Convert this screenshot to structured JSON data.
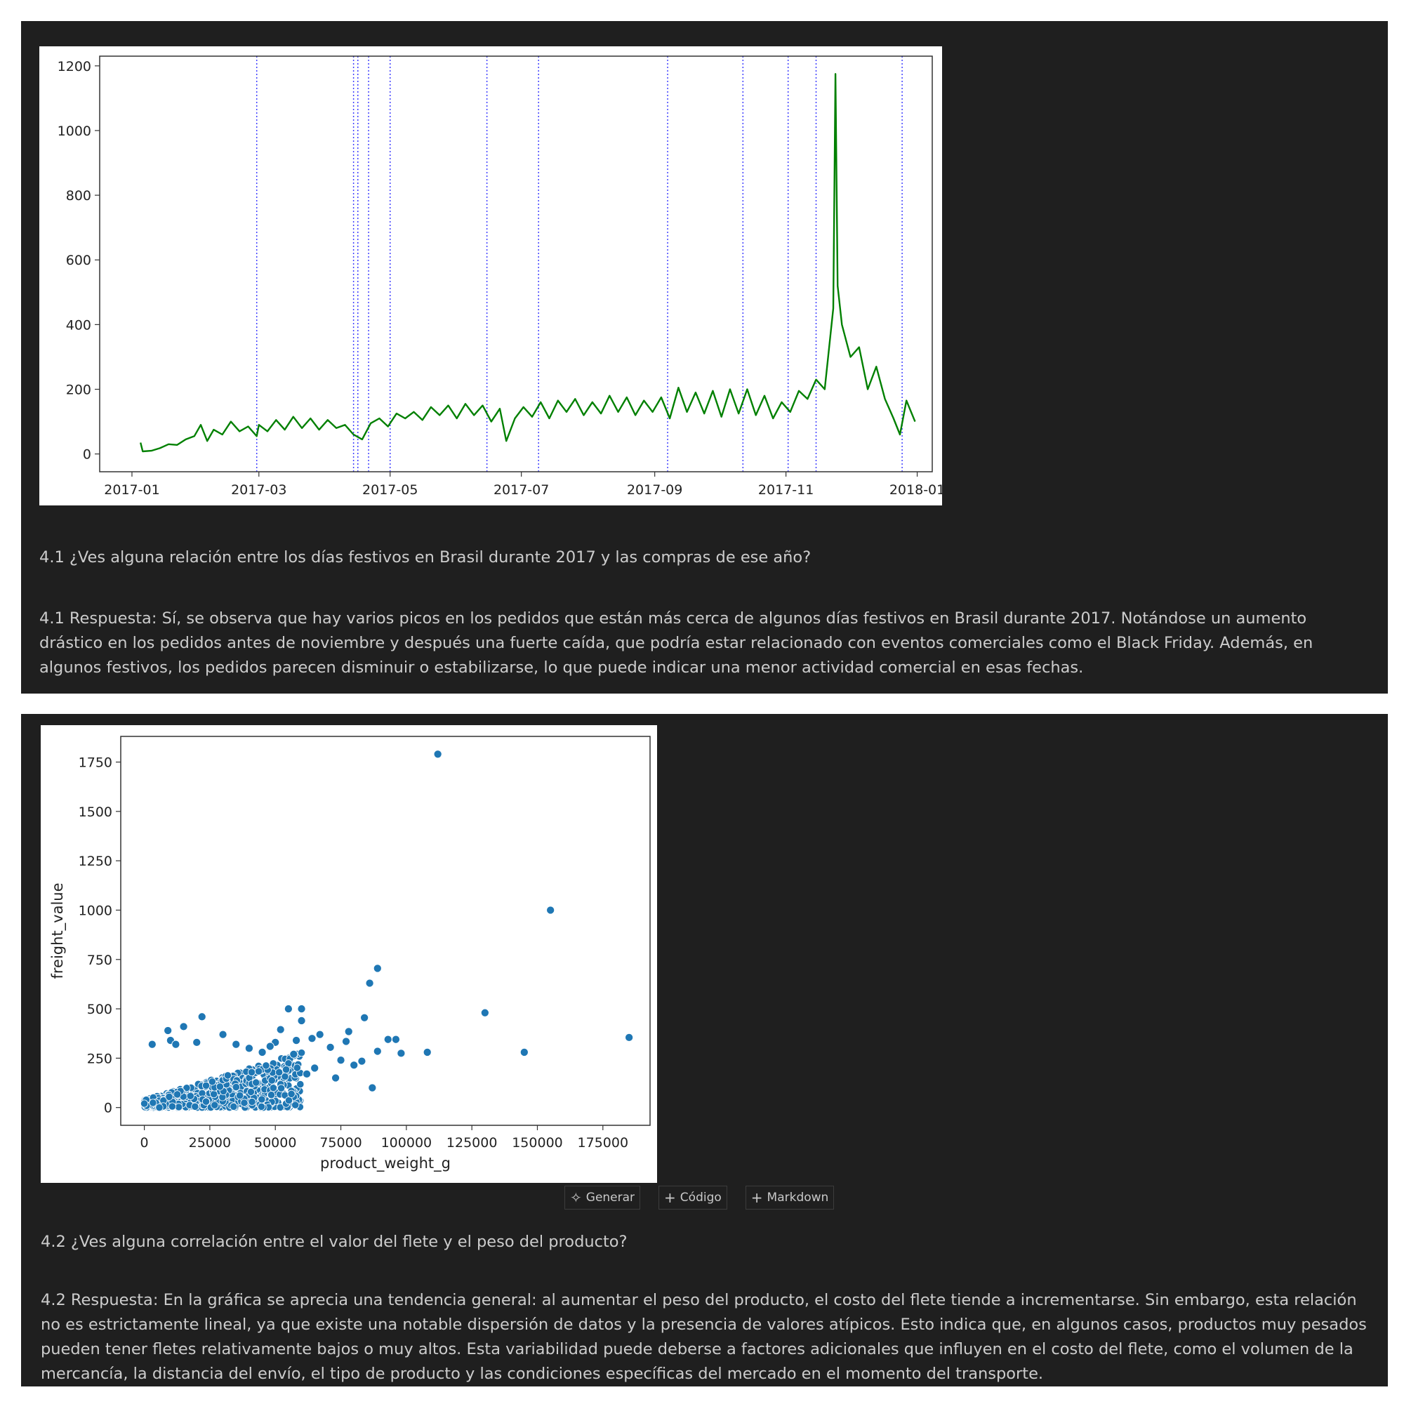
{
  "cells": {
    "first": {
      "question": "4.1 ¿Ves alguna relación entre los días festivos en Brasil durante 2017 y las compras de ese año?",
      "answer": "4.1 Respuesta: Sí, se observa que hay varios picos en los pedidos que están más cerca de algunos días festivos en Brasil durante 2017. Notándose un aumento drástico en los pedidos antes de noviembre y después una fuerte caída, que podría estar relacionado con eventos comerciales como el Black Friday. Además, en algunos festivos, los pedidos parecen disminuir o estabilizarse, lo que puede indicar una menor actividad comercial en esas fechas."
    },
    "second": {
      "question": "4.2 ¿Ves alguna correlación entre el valor del flete y el peso del producto?",
      "answer": "4.2 Respuesta: En la gráfica se aprecia una tendencia general: al aumentar el peso del producto, el costo del flete tiende a incrementarse. Sin embargo, esta relación no es estrictamente lineal, ya que existe una notable dispersión de datos y la presencia de valores atípicos. Esto indica que, en algunos casos, productos muy pesados pueden tener fletes relativamente bajos o muy altos. Esta variabilidad puede deberse a factores adicionales que influyen en el costo del flete, como el volumen de la mercancía, la distancia del envío, el tipo de producto y las condiciones específicas del mercado en el momento del transporte."
    }
  },
  "toolbar": {
    "generate_label": "Generar",
    "code_label": "Código",
    "markdown_label": "Markdown",
    "generate_icon": "sparkle-icon",
    "code_icon": "plus-icon",
    "markdown_icon": "plus-icon"
  },
  "colors": {
    "cell_background": "#1f1f1f",
    "text": "#cccccc",
    "line_series": "#008000",
    "holiday_lines": "#0000ff",
    "scatter_points": "#1f77b4"
  },
  "chart_data": [
    {
      "type": "line",
      "title": "",
      "xlabel": "",
      "ylabel": "",
      "xlim": [
        "2016-12-17",
        "2018-01-08"
      ],
      "ylim": [
        -55,
        1230
      ],
      "yticks": [
        0,
        200,
        400,
        600,
        800,
        1000,
        1200
      ],
      "xticks": [
        "2017-01",
        "2017-03",
        "2017-05",
        "2017-07",
        "2017-09",
        "2017-11",
        "2018-01"
      ],
      "grid": false,
      "legend": "none",
      "series": [
        {
          "color": "#008000",
          "points": [
            [
              "2017-01-05",
              35
            ],
            [
              "2017-01-06",
              8
            ],
            [
              "2017-01-10",
              10
            ],
            [
              "2017-01-14",
              18
            ],
            [
              "2017-01-18",
              30
            ],
            [
              "2017-01-22",
              28
            ],
            [
              "2017-01-26",
              45
            ],
            [
              "2017-01-30",
              55
            ],
            [
              "2017-02-02",
              90
            ],
            [
              "2017-02-05",
              40
            ],
            [
              "2017-02-08",
              75
            ],
            [
              "2017-02-12",
              60
            ],
            [
              "2017-02-16",
              100
            ],
            [
              "2017-02-20",
              70
            ],
            [
              "2017-02-24",
              85
            ],
            [
              "2017-02-28",
              55
            ],
            [
              "2017-03-01",
              90
            ],
            [
              "2017-03-05",
              70
            ],
            [
              "2017-03-09",
              105
            ],
            [
              "2017-03-13",
              75
            ],
            [
              "2017-03-17",
              115
            ],
            [
              "2017-03-21",
              80
            ],
            [
              "2017-03-25",
              110
            ],
            [
              "2017-03-29",
              75
            ],
            [
              "2017-04-02",
              105
            ],
            [
              "2017-04-06",
              80
            ],
            [
              "2017-04-10",
              90
            ],
            [
              "2017-04-14",
              60
            ],
            [
              "2017-04-18",
              45
            ],
            [
              "2017-04-22",
              95
            ],
            [
              "2017-04-26",
              110
            ],
            [
              "2017-04-30",
              85
            ],
            [
              "2017-05-04",
              125
            ],
            [
              "2017-05-08",
              110
            ],
            [
              "2017-05-12",
              130
            ],
            [
              "2017-05-16",
              105
            ],
            [
              "2017-05-20",
              145
            ],
            [
              "2017-05-24",
              120
            ],
            [
              "2017-05-28",
              150
            ],
            [
              "2017-06-01",
              110
            ],
            [
              "2017-06-05",
              155
            ],
            [
              "2017-06-09",
              120
            ],
            [
              "2017-06-13",
              150
            ],
            [
              "2017-06-17",
              100
            ],
            [
              "2017-06-21",
              140
            ],
            [
              "2017-06-24",
              40
            ],
            [
              "2017-06-28",
              110
            ],
            [
              "2017-07-02",
              145
            ],
            [
              "2017-07-06",
              115
            ],
            [
              "2017-07-10",
              160
            ],
            [
              "2017-07-14",
              110
            ],
            [
              "2017-07-18",
              165
            ],
            [
              "2017-07-22",
              130
            ],
            [
              "2017-07-26",
              170
            ],
            [
              "2017-07-30",
              120
            ],
            [
              "2017-08-03",
              160
            ],
            [
              "2017-08-07",
              125
            ],
            [
              "2017-08-11",
              180
            ],
            [
              "2017-08-15",
              130
            ],
            [
              "2017-08-19",
              175
            ],
            [
              "2017-08-23",
              120
            ],
            [
              "2017-08-27",
              165
            ],
            [
              "2017-08-31",
              130
            ],
            [
              "2017-09-04",
              175
            ],
            [
              "2017-09-08",
              110
            ],
            [
              "2017-09-12",
              205
            ],
            [
              "2017-09-16",
              130
            ],
            [
              "2017-09-20",
              190
            ],
            [
              "2017-09-24",
              125
            ],
            [
              "2017-09-28",
              195
            ],
            [
              "2017-10-02",
              115
            ],
            [
              "2017-10-06",
              200
            ],
            [
              "2017-10-10",
              125
            ],
            [
              "2017-10-14",
              200
            ],
            [
              "2017-10-18",
              120
            ],
            [
              "2017-10-22",
              180
            ],
            [
              "2017-10-26",
              110
            ],
            [
              "2017-10-30",
              160
            ],
            [
              "2017-11-03",
              130
            ],
            [
              "2017-11-07",
              195
            ],
            [
              "2017-11-11",
              170
            ],
            [
              "2017-11-15",
              230
            ],
            [
              "2017-11-19",
              200
            ],
            [
              "2017-11-23",
              450
            ],
            [
              "2017-11-24",
              1175
            ],
            [
              "2017-11-25",
              520
            ],
            [
              "2017-11-27",
              400
            ],
            [
              "2017-12-01",
              300
            ],
            [
              "2017-12-05",
              330
            ],
            [
              "2017-12-09",
              200
            ],
            [
              "2017-12-13",
              270
            ],
            [
              "2017-12-17",
              170
            ],
            [
              "2017-12-21",
              110
            ],
            [
              "2017-12-24",
              60
            ],
            [
              "2017-12-27",
              165
            ],
            [
              "2017-12-31",
              100
            ]
          ]
        }
      ],
      "holiday_markers": [
        "2017-02-28",
        "2017-04-14",
        "2017-04-16",
        "2017-04-21",
        "2017-05-01",
        "2017-06-15",
        "2017-07-09",
        "2017-09-07",
        "2017-10-12",
        "2017-11-02",
        "2017-11-15",
        "2017-12-25"
      ]
    },
    {
      "type": "scatter",
      "title": "",
      "xlabel": "product_weight_g",
      "ylabel": "freight_value",
      "xlim": [
        -9000,
        193000
      ],
      "ylim": [
        -90,
        1880
      ],
      "xticks": [
        0,
        25000,
        50000,
        75000,
        100000,
        125000,
        150000,
        175000
      ],
      "yticks": [
        0,
        250,
        500,
        750,
        1000,
        1250,
        1500,
        1750
      ],
      "grid": false,
      "legend": "none",
      "outliers": [
        [
          112000,
          1790
        ],
        [
          155000,
          1000
        ],
        [
          89000,
          705
        ],
        [
          86000,
          630
        ],
        [
          130000,
          480
        ],
        [
          84000,
          455
        ],
        [
          185000,
          355
        ],
        [
          145000,
          280
        ],
        [
          108000,
          280
        ],
        [
          98000,
          275
        ],
        [
          96000,
          345
        ],
        [
          93000,
          345
        ],
        [
          55000,
          500
        ],
        [
          60000,
          500
        ],
        [
          60000,
          440
        ],
        [
          52000,
          395
        ],
        [
          78000,
          385
        ],
        [
          67000,
          370
        ],
        [
          77000,
          335
        ],
        [
          71000,
          305
        ],
        [
          89000,
          285
        ],
        [
          83000,
          235
        ],
        [
          80000,
          215
        ],
        [
          87000,
          100
        ],
        [
          62000,
          170
        ],
        [
          64000,
          350
        ],
        [
          58000,
          340
        ],
        [
          50000,
          330
        ],
        [
          48000,
          310
        ],
        [
          45000,
          280
        ],
        [
          75000,
          240
        ],
        [
          73000,
          150
        ],
        [
          65000,
          200
        ],
        [
          57000,
          270
        ],
        [
          22000,
          460
        ],
        [
          15000,
          410
        ],
        [
          9000,
          390
        ],
        [
          10000,
          340
        ],
        [
          12000,
          320
        ],
        [
          3000,
          320
        ],
        [
          20000,
          330
        ],
        [
          30000,
          370
        ],
        [
          35000,
          320
        ],
        [
          40000,
          300
        ]
      ],
      "dense_cluster": {
        "x_range": [
          0,
          60000
        ],
        "y_range": [
          0,
          280
        ],
        "points_drawn": 900
      }
    }
  ]
}
